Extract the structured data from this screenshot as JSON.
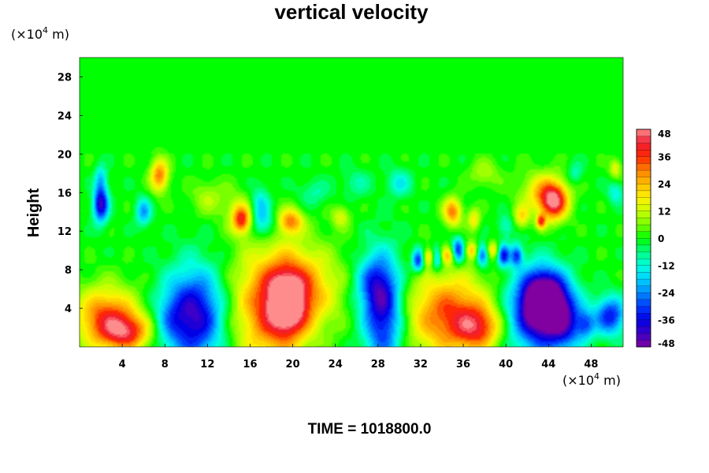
{
  "chart_data": {
    "type": "heatmap",
    "title": "vertical velocity",
    "ylabel": "Height",
    "xlabel": "",
    "x_unit": {
      "prefix": "(×10",
      "exp": "4",
      "suffix": " m)"
    },
    "y_unit": {
      "prefix": "(×10",
      "exp": "4",
      "suffix": " m)"
    },
    "xlim": [
      0,
      51
    ],
    "ylim": [
      0,
      30
    ],
    "x_ticks": [
      4,
      8,
      12,
      16,
      20,
      24,
      28,
      32,
      36,
      40,
      44,
      48
    ],
    "y_ticks": [
      4,
      8,
      12,
      16,
      20,
      24,
      28
    ],
    "x_tick_labels": [
      "4",
      "8",
      "12",
      "16",
      "20",
      "24",
      "28",
      "32",
      "36",
      "40",
      "44",
      "48"
    ],
    "y_tick_labels": [
      "4",
      "8",
      "12",
      "16",
      "20",
      "24",
      "28"
    ],
    "colorbar": {
      "min": -48,
      "max": 48,
      "ticks": [
        48,
        36,
        24,
        12,
        0,
        -12,
        -24,
        -36,
        -48
      ],
      "tick_labels": [
        "48",
        "36",
        "24",
        "12",
        "0",
        "-12",
        "-24",
        "-36",
        "-48"
      ]
    },
    "features": [
      {
        "x": 2.5,
        "y": 3.0,
        "value": 34,
        "rx": 2.0,
        "ry": 2.2
      },
      {
        "x": 4.5,
        "y": 1.5,
        "value": 30,
        "rx": 1.6,
        "ry": 1.3
      },
      {
        "x": 10.8,
        "y": 3.2,
        "value": -42,
        "rx": 1.9,
        "ry": 3.4
      },
      {
        "x": 8.4,
        "y": 3.0,
        "value": -10,
        "rx": 1.0,
        "ry": 2.0
      },
      {
        "x": 17.8,
        "y": 4.0,
        "value": 30,
        "rx": 2.5,
        "ry": 4.3
      },
      {
        "x": 19.5,
        "y": 4.5,
        "value": 36,
        "rx": 1.2,
        "ry": 2.2
      },
      {
        "x": 21.0,
        "y": 6.0,
        "value": 22,
        "rx": 2.5,
        "ry": 3.0
      },
      {
        "x": 28.5,
        "y": 3.5,
        "value": -38,
        "rx": 1.3,
        "ry": 4.0
      },
      {
        "x": 27.5,
        "y": 6.5,
        "value": -18,
        "rx": 1.2,
        "ry": 2.0
      },
      {
        "x": 34.7,
        "y": 3.3,
        "value": 34,
        "rx": 2.8,
        "ry": 3.0
      },
      {
        "x": 37.5,
        "y": 2.0,
        "value": 26,
        "rx": 1.5,
        "ry": 1.5
      },
      {
        "x": 43.6,
        "y": 5.0,
        "value": -50,
        "rx": 1.4,
        "ry": 2.0
      },
      {
        "x": 43.0,
        "y": 3.3,
        "value": -36,
        "rx": 2.2,
        "ry": 3.0
      },
      {
        "x": 45.5,
        "y": 2.5,
        "value": -24,
        "rx": 1.2,
        "ry": 2.0
      },
      {
        "x": 49.8,
        "y": 3.2,
        "value": -34,
        "rx": 1.0,
        "ry": 1.4
      },
      {
        "x": 47.5,
        "y": 2.3,
        "value": -20,
        "rx": 0.6,
        "ry": 1.0
      },
      {
        "x": 2.0,
        "y": 14.8,
        "value": -42,
        "rx": 0.5,
        "ry": 1.3
      },
      {
        "x": 2.0,
        "y": 17.5,
        "value": -16,
        "rx": 0.4,
        "ry": 1.0
      },
      {
        "x": 7.5,
        "y": 17.8,
        "value": 30,
        "rx": 0.6,
        "ry": 1.2
      },
      {
        "x": 6.0,
        "y": 14.0,
        "value": -22,
        "rx": 0.5,
        "ry": 1.0
      },
      {
        "x": 15.2,
        "y": 13.2,
        "value": 34,
        "rx": 0.6,
        "ry": 1.0
      },
      {
        "x": 17.0,
        "y": 14.5,
        "value": -18,
        "rx": 0.6,
        "ry": 1.4
      },
      {
        "x": 17.5,
        "y": 12.5,
        "value": -12,
        "rx": 0.8,
        "ry": 1.0
      },
      {
        "x": 19.8,
        "y": 13.0,
        "value": 28,
        "rx": 0.8,
        "ry": 0.9
      },
      {
        "x": 14.5,
        "y": 14.5,
        "value": 8,
        "rx": 1.0,
        "ry": 1.5
      },
      {
        "x": 24.5,
        "y": 13.5,
        "value": 14,
        "rx": 0.6,
        "ry": 0.8
      },
      {
        "x": 31.8,
        "y": 9.0,
        "value": -36,
        "rx": 0.4,
        "ry": 0.8
      },
      {
        "x": 33.5,
        "y": 9.2,
        "value": -30,
        "rx": 0.4,
        "ry": 0.8
      },
      {
        "x": 35.5,
        "y": 10.0,
        "value": -34,
        "rx": 0.4,
        "ry": 0.9
      },
      {
        "x": 37.8,
        "y": 9.5,
        "value": -30,
        "rx": 0.4,
        "ry": 0.8
      },
      {
        "x": 39.8,
        "y": 9.5,
        "value": -34,
        "rx": 0.4,
        "ry": 0.8
      },
      {
        "x": 41.0,
        "y": 9.5,
        "value": -30,
        "rx": 0.4,
        "ry": 0.8
      },
      {
        "x": 32.8,
        "y": 9.3,
        "value": 24,
        "rx": 0.5,
        "ry": 0.6
      },
      {
        "x": 34.5,
        "y": 9.5,
        "value": 20,
        "rx": 0.5,
        "ry": 0.6
      },
      {
        "x": 36.8,
        "y": 10.0,
        "value": 22,
        "rx": 0.4,
        "ry": 0.6
      },
      {
        "x": 38.8,
        "y": 10.0,
        "value": 20,
        "rx": 0.4,
        "ry": 0.6
      },
      {
        "x": 35.0,
        "y": 14.0,
        "value": 30,
        "rx": 0.6,
        "ry": 1.0
      },
      {
        "x": 37.0,
        "y": 13.2,
        "value": 18,
        "rx": 0.4,
        "ry": 0.8
      },
      {
        "x": 41.5,
        "y": 13.5,
        "value": 18,
        "rx": 0.5,
        "ry": 0.8
      },
      {
        "x": 40.0,
        "y": 12.5,
        "value": -12,
        "rx": 0.5,
        "ry": 0.8
      },
      {
        "x": 43.3,
        "y": 13.0,
        "value": 32,
        "rx": 0.3,
        "ry": 0.5
      },
      {
        "x": 44.5,
        "y": 15.0,
        "value": 40,
        "rx": 0.9,
        "ry": 1.3
      },
      {
        "x": 43.5,
        "y": 16.0,
        "value": 20,
        "rx": 1.5,
        "ry": 1.5
      },
      {
        "x": 50.3,
        "y": 16.0,
        "value": -14,
        "rx": 0.5,
        "ry": 0.8
      },
      {
        "x": 50.3,
        "y": 18.5,
        "value": 16,
        "rx": 0.4,
        "ry": 0.7
      },
      {
        "x": 30.0,
        "y": 17.0,
        "value": -14,
        "rx": 0.8,
        "ry": 1.0
      },
      {
        "x": 12.0,
        "y": 15.5,
        "value": 10,
        "rx": 1.0,
        "ry": 1.2
      },
      {
        "x": 26.0,
        "y": 17.0,
        "value": -8,
        "rx": 1.0,
        "ry": 1.0
      },
      {
        "x": 38.0,
        "y": 18.0,
        "value": 10,
        "rx": 1.0,
        "ry": 1.0
      },
      {
        "x": 22.0,
        "y": 16.0,
        "value": -8,
        "rx": 1.0,
        "ry": 1.0
      },
      {
        "x": 46.5,
        "y": 18.0,
        "value": -10,
        "rx": 0.5,
        "ry": 0.8
      }
    ]
  },
  "footer": {
    "time_label": "TIME = 1018800.0"
  },
  "colors": {
    "background": "#ffffff",
    "field_zero": "#00ff00",
    "text": "#000000"
  }
}
